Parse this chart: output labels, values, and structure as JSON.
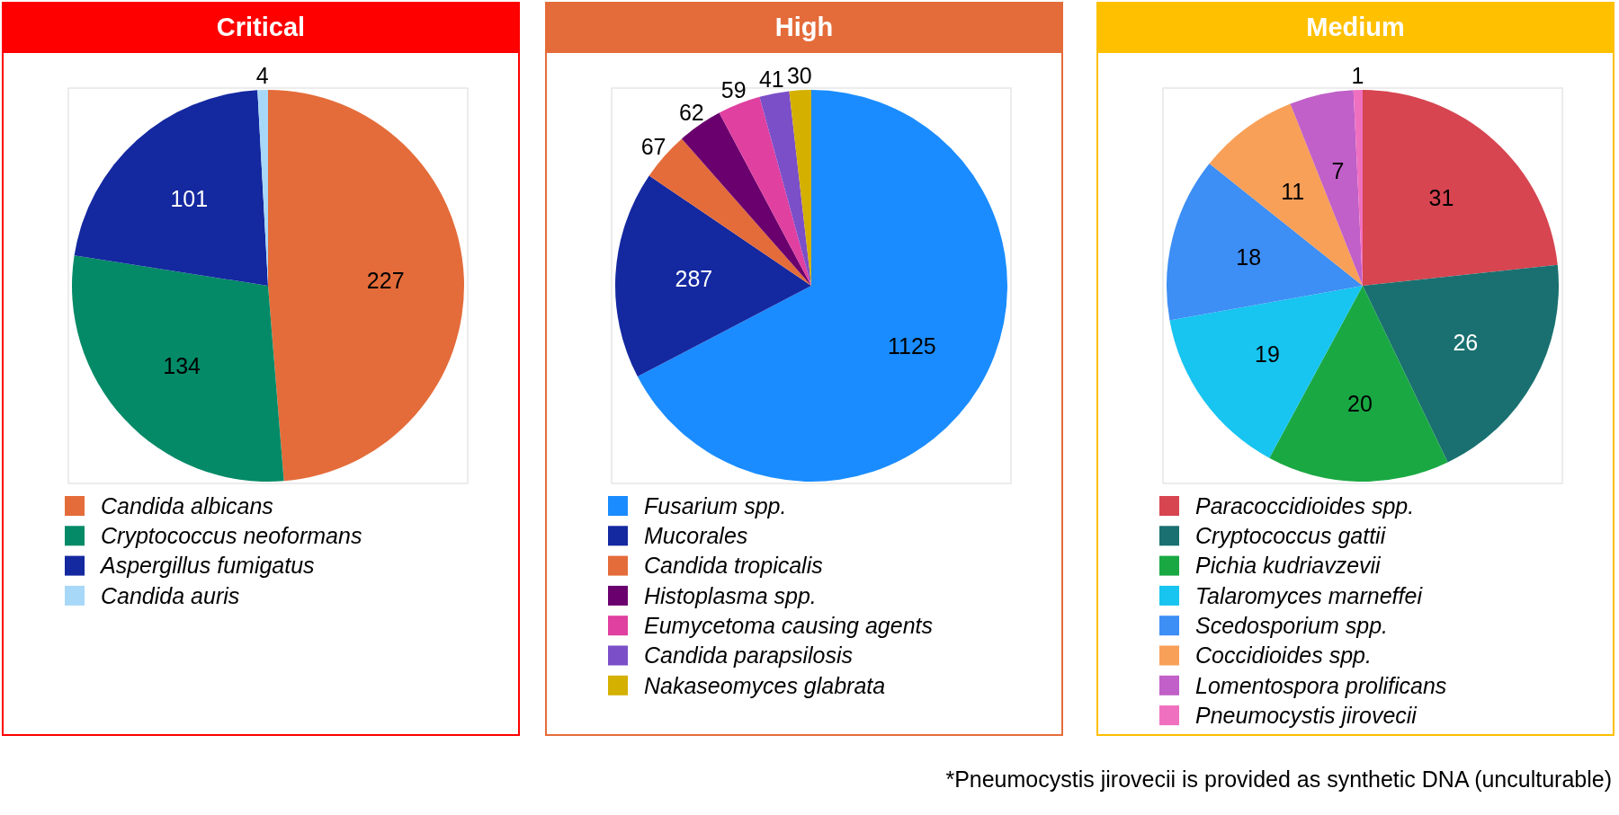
{
  "chart_data": [
    {
      "type": "pie",
      "title": "Critical",
      "color": "#ff0000",
      "categories": [
        "Candida albicans",
        "Cryptococcus neoformans",
        "Aspergillus fumigatus",
        "Candida auris"
      ],
      "values": [
        227,
        134,
        101,
        4
      ],
      "colors": [
        "#e46c3a",
        "#048a67",
        "#1428a0",
        "#a8d8f8"
      ],
      "data_labels": true,
      "legend": "bottom"
    },
    {
      "type": "pie",
      "title": "High",
      "color": "#e46c3a",
      "categories": [
        "Fusarium spp.",
        "Mucorales",
        "Candida tropicalis",
        "Histoplasma spp.",
        "Eumycetoma causing agents",
        "Candida parapsilosis",
        "Nakaseomyces glabrata"
      ],
      "values": [
        1125,
        287,
        67,
        62,
        59,
        41,
        30
      ],
      "colors": [
        "#1a8cff",
        "#1428a0",
        "#e46c3a",
        "#6a006e",
        "#e040a0",
        "#7b4fc8",
        "#d4b000"
      ],
      "data_labels": true,
      "legend": "bottom"
    },
    {
      "type": "pie",
      "title": "Medium",
      "color": "#ffc000",
      "categories": [
        "Paracoccidioides spp.",
        "Cryptococcus gattii",
        "Pichia kudriavzevii",
        "Talaromyces marneffei",
        "Scedosporium spp.",
        "Coccidioides spp.",
        "Lomentospora prolificans",
        "Pneumocystis jirovecii"
      ],
      "values": [
        31,
        26,
        20,
        19,
        18,
        11,
        7,
        1
      ],
      "colors": [
        "#d64550",
        "#1a7070",
        "#1aa843",
        "#18c4f0",
        "#3d8ef5",
        "#f8a058",
        "#c060c8",
        "#f070c0"
      ],
      "data_labels": true,
      "legend": "bottom",
      "annotations": [
        "*Pneumocystis jirovecii  is provided as synthetic DNA (unculturable)"
      ]
    }
  ]
}
